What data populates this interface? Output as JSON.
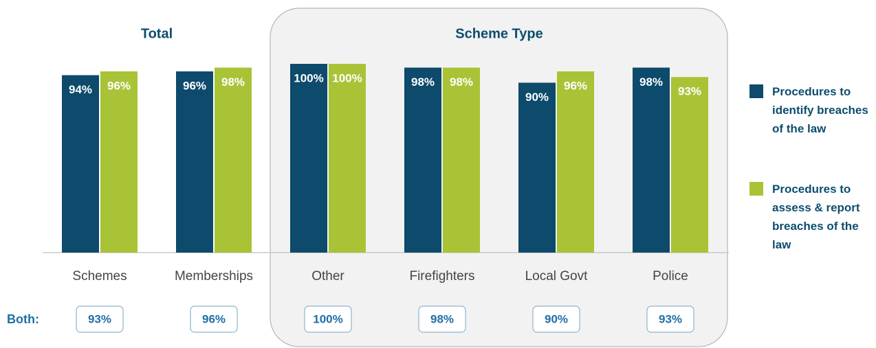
{
  "chart_data": {
    "type": "bar",
    "groups": [
      {
        "name": "Total",
        "categories": [
          "Schemes",
          "Memberships"
        ]
      },
      {
        "name": "Scheme Type",
        "categories": [
          "Other",
          "Firefighters",
          "Local Govt",
          "Police"
        ]
      }
    ],
    "series": [
      {
        "name": "Procedures to identify breaches of the law",
        "color": "#0d4a6b",
        "values": [
          94,
          96,
          100,
          98,
          90,
          98
        ],
        "value_labels": [
          "94%",
          "96%",
          "100%",
          "98%",
          "90%",
          "98%"
        ]
      },
      {
        "name": "Procedures to assess & report breaches of the law",
        "color": "#a9c337",
        "values": [
          96,
          98,
          100,
          98,
          96,
          93
        ],
        "value_labels": [
          "96%",
          "98%",
          "100%",
          "98%",
          "96%",
          "93%"
        ]
      }
    ],
    "both": {
      "label": "Both:",
      "values": [
        93,
        96,
        100,
        98,
        90,
        93
      ],
      "value_labels": [
        "93%",
        "96%",
        "100%",
        "98%",
        "90%",
        "93%"
      ]
    }
  }
}
